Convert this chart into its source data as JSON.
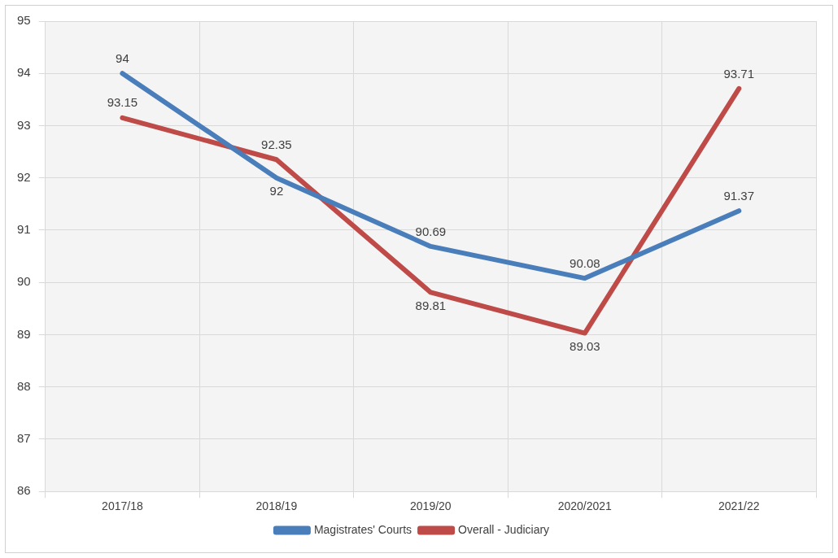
{
  "chart_data": {
    "type": "line",
    "categories": [
      "2017/18",
      "2018/19",
      "2019/20",
      "2020/2021",
      "2021/22"
    ],
    "series": [
      {
        "name": "Magistrates' Courts",
        "color": "#4a7ebb",
        "values": [
          94,
          92,
          90.69,
          90.08,
          91.37
        ]
      },
      {
        "name": "Overall - Judiciary",
        "color": "#be4b48",
        "values": [
          93.15,
          92.35,
          89.81,
          89.03,
          93.71
        ]
      }
    ],
    "ylim": [
      86,
      95
    ],
    "yticks": [
      86,
      87,
      88,
      89,
      90,
      91,
      92,
      93,
      94,
      95
    ],
    "grid": true,
    "legend": "bottom",
    "data_labels": true,
    "marker": "none",
    "line_style": "solid"
  }
}
